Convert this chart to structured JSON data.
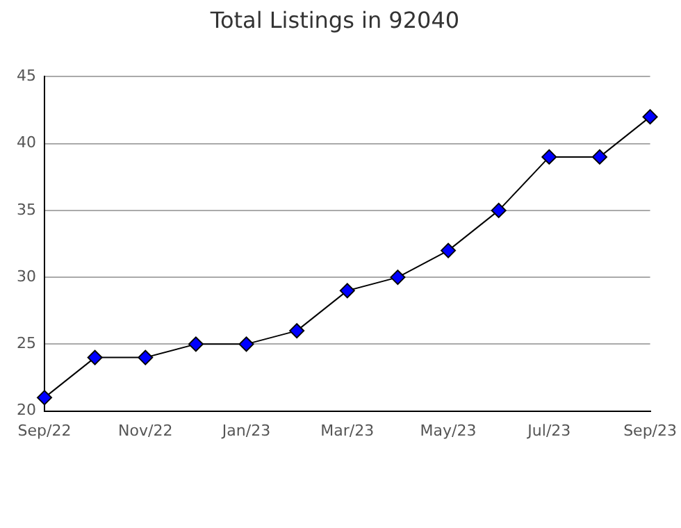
{
  "chart_data": {
    "type": "line",
    "title": "Total Listings in 92040",
    "categories": [
      "Sep/22",
      null,
      "Nov/22",
      null,
      "Jan/23",
      null,
      "Mar/23",
      null,
      "May/23",
      null,
      "Jul/23",
      null,
      "Sep/23"
    ],
    "series": [
      {
        "color": "#0000ff",
        "values": [
          21,
          24,
          24,
          25,
          25,
          26,
          29,
          30,
          32,
          35,
          39,
          39,
          42
        ]
      }
    ],
    "ylim": [
      20,
      45
    ],
    "yticks": [
      20,
      25,
      30,
      35,
      40,
      45
    ],
    "grid": "y",
    "legend": false,
    "marker": "diamond",
    "line_style": "solid"
  }
}
